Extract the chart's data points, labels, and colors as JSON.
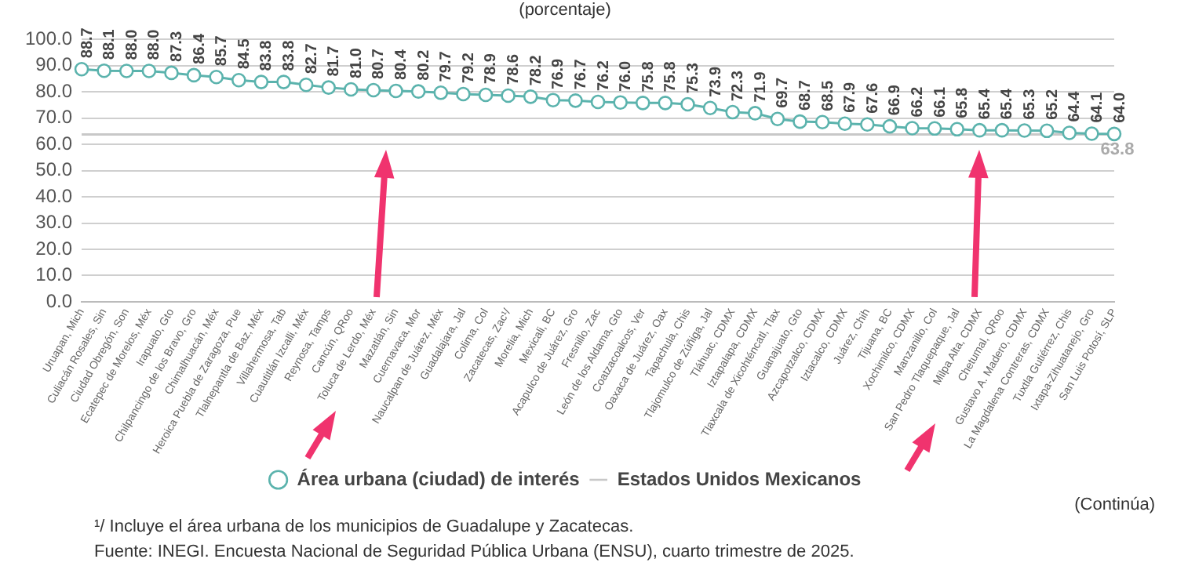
{
  "chart_data": {
    "type": "line",
    "subtitle": "(porcentaje)",
    "categories": [
      "Uruapan, Mich",
      "Culiacán Rosales, Sin",
      "Ciudad Obregón, Son",
      "Ecatepec de Morelos, Méx",
      "Irapuato, Gto",
      "Chilpancingo de los Bravo, Gro",
      "Chimalhuacán, Méx",
      "Heroica Puebla de Zaragoza, Pue",
      "Tlalnepantla de Baz, Méx",
      "Villahermosa, Tab",
      "Cuautitlán Izcalli, Méx",
      "Reynosa, Tamps",
      "Cancún, QRoo",
      "Toluca de Lerdo, Méx",
      "Mazatlán, Sin",
      "Cuernavaca, Mor",
      "Naucalpan de Juárez, Méx",
      "Guadalajara, Jal",
      "Colima, Col",
      "Zacatecas, Zac¹/",
      "Morelia, Mich",
      "Mexicali, BC",
      "Acapulco de Juárez, Gro",
      "Fresnillo, Zac",
      "León de los Aldama, Gto",
      "Coatzacoalcos, Ver",
      "Oaxaca de Juárez, Oax",
      "Tapachula, Chis",
      "Tlajomulco de Zúñiga, Jal",
      "Tláhuac, CDMX",
      "Iztapalapa, CDMX",
      "Tlaxcala de Xicohténcatl, Tlax",
      "Guanajuato, Gto",
      "Azcapotzalco, CDMX",
      "Iztacalco, CDMX",
      "Juárez, Chih",
      "Tijuana, BC",
      "Xochimilco, CDMX",
      "Manzanillo, Col",
      "San Pedro Tlaquepaque, Jal",
      "Milpa Alta, CDMX",
      "Chetumal, QRoo",
      "Gustavo A. Madero, CDMX",
      "La Magdalena Contreras, CDMX",
      "Tuxtla Gutiérrez, Chis",
      "Ixtapa-Zihuatanejo, Gro",
      "San Luis Potosí, SLP"
    ],
    "series": [
      {
        "name": "Área urbana (ciudad) de interés",
        "color": "#5bb3ad",
        "values": [
          88.7,
          88.1,
          88.0,
          88.0,
          87.3,
          86.4,
          85.7,
          84.5,
          83.8,
          83.8,
          82.7,
          81.7,
          81.0,
          80.7,
          80.4,
          80.2,
          79.7,
          79.2,
          78.9,
          78.6,
          78.2,
          76.9,
          76.7,
          76.2,
          76.0,
          75.8,
          75.8,
          75.3,
          73.9,
          72.3,
          71.9,
          69.7,
          68.7,
          68.5,
          67.9,
          67.6,
          66.9,
          66.2,
          66.1,
          65.8,
          65.4,
          65.4,
          65.3,
          65.2,
          64.4,
          64.1,
          64.0
        ],
        "value_labels": [
          "88.7",
          "88.1",
          "88.0",
          "88.0",
          "87.3",
          "86.4",
          "85.7",
          "84.5",
          "83.8",
          "83.8",
          "82.7",
          "81.7",
          "81.0",
          "80.7",
          "80.4",
          "80.2",
          "79.7",
          "79.2",
          "78.9",
          "78.6",
          "78.2",
          "76.9",
          "76.7",
          "76.2",
          "76.0",
          "75.8",
          "75.8",
          "75.3",
          "73.9",
          "72.3",
          "71.9",
          "69.7",
          "68.7",
          "68.5",
          "67.9",
          "67.6",
          "66.9",
          "66.2",
          "66.1",
          "65.8",
          "65.4",
          "65.4",
          "65.3",
          "65.2",
          "64.4",
          "64.1",
          "64.0"
        ]
      },
      {
        "name": "Estados Unidos Mexicanos",
        "color": "#c8c8c8",
        "marker": "none",
        "values": [
          63.8,
          63.8,
          63.8,
          63.8,
          63.8,
          63.8,
          63.8,
          63.8,
          63.8,
          63.8,
          63.8,
          63.8,
          63.8,
          63.8,
          63.8,
          63.8,
          63.8,
          63.8,
          63.8,
          63.8,
          63.8,
          63.8,
          63.8,
          63.8,
          63.8,
          63.8,
          63.8,
          63.8,
          63.8,
          63.8,
          63.8,
          63.8,
          63.8,
          63.8,
          63.8,
          63.8,
          63.8,
          63.8,
          63.8,
          63.8,
          63.8,
          63.8,
          63.8,
          63.8,
          63.8,
          63.8,
          63.8
        ],
        "value_labels": [
          null,
          null,
          null,
          null,
          null,
          null,
          null,
          null,
          null,
          null,
          null,
          null,
          null,
          null,
          null,
          null,
          null,
          null,
          null,
          null,
          null,
          null,
          null,
          null,
          null,
          null,
          null,
          null,
          null,
          null,
          null,
          null,
          null,
          null,
          null,
          null,
          null,
          null,
          null,
          null,
          null,
          null,
          null,
          null,
          null,
          null,
          "63.8"
        ]
      }
    ],
    "ylim": [
      0,
      100
    ],
    "yticks": [
      {
        "value": 0,
        "label": "0.0"
      },
      {
        "value": 10,
        "label": "10.0"
      },
      {
        "value": 20,
        "label": "20.0"
      },
      {
        "value": 30,
        "label": "30.0"
      },
      {
        "value": 40,
        "label": "40.0"
      },
      {
        "value": 50,
        "label": "50.0"
      },
      {
        "value": 60,
        "label": "60.0"
      },
      {
        "value": 70,
        "label": "70.0"
      },
      {
        "value": 80,
        "label": "80.0"
      },
      {
        "value": 90,
        "label": "90.0"
      },
      {
        "value": 100,
        "label": "100.0"
      }
    ],
    "grid": "y",
    "legend": "bottom",
    "marker": "circle",
    "line_style": "solid",
    "annotations": [
      "(Continúa)",
      "¹/ Incluye el área urbana de los municipios de Guadalupe y Zacatecas.",
      "Fuente: INEGI. Encuesta Nacional de Seguridad Pública Urbana (ENSU), cuarto trimestre de 2025."
    ]
  }
}
